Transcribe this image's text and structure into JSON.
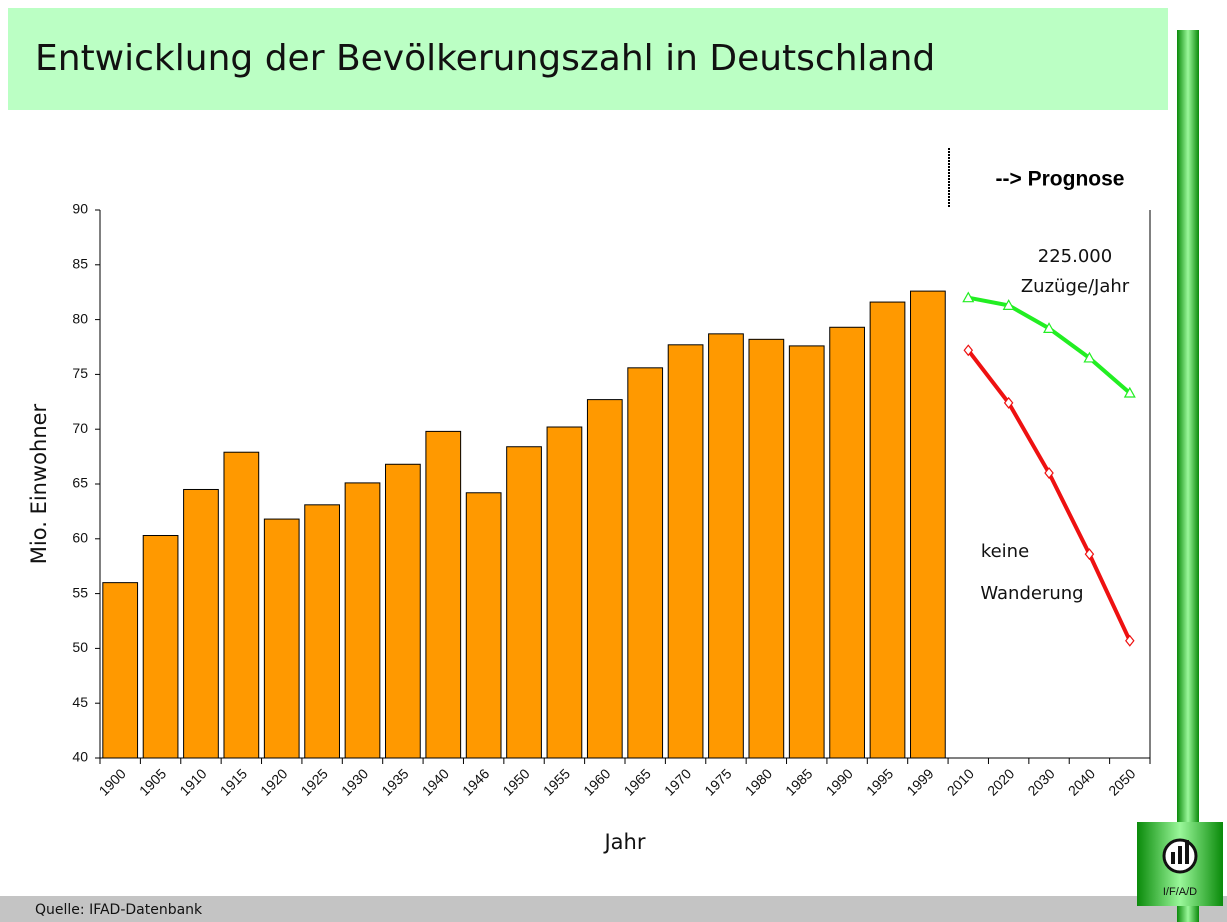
{
  "chart_data": {
    "type": "bar",
    "title": "Entwicklung der Bevölkerungszahl in Deutschland",
    "x_label": "Jahr",
    "y_label": "Mio. Einwohner",
    "annotations": [
      "--> Prognose",
      "225.000",
      "Zuzüge/Jahr",
      "keine",
      "Wanderung"
    ],
    "source": "Quelle: IFAD-Datenbank",
    "logo": "I/F/A/D",
    "categories": [
      "1900",
      "1905",
      "1910",
      "1915",
      "1920",
      "1925",
      "1930",
      "1935",
      "1940",
      "1946",
      "1950",
      "1955",
      "1960",
      "1965",
      "1970",
      "1975",
      "1980",
      "1985",
      "1990",
      "1995",
      "1999",
      "2010",
      "2020",
      "2030",
      "2040",
      "2050"
    ],
    "series": [
      {
        "type": "bar",
        "color": "#ff9900",
        "values": [
          56.0,
          60.3,
          64.5,
          67.9,
          61.8,
          63.1,
          65.1,
          66.8,
          69.8,
          64.2,
          68.4,
          70.2,
          72.7,
          75.6,
          77.7,
          78.7,
          78.2,
          77.6,
          79.3,
          81.6,
          82.6,
          null,
          null,
          null,
          null,
          null
        ]
      },
      {
        "type": "line",
        "color": "#22ee22",
        "marker": "triangle",
        "values": [
          null,
          null,
          null,
          null,
          null,
          null,
          null,
          null,
          null,
          null,
          null,
          null,
          null,
          null,
          null,
          null,
          null,
          null,
          null,
          null,
          null,
          82.0,
          81.3,
          79.2,
          76.5,
          73.3
        ]
      },
      {
        "type": "line",
        "color": "#ee1111",
        "marker": "diamond",
        "values": [
          null,
          null,
          null,
          null,
          null,
          null,
          null,
          null,
          null,
          null,
          null,
          null,
          null,
          null,
          null,
          null,
          null,
          null,
          null,
          null,
          null,
          77.2,
          72.4,
          66.0,
          58.6,
          50.7
        ]
      }
    ],
    "ylim": [
      40,
      90
    ],
    "yticks": [
      40,
      45,
      50,
      55,
      60,
      65,
      70,
      75,
      80,
      85,
      90
    ],
    "grid": false
  }
}
